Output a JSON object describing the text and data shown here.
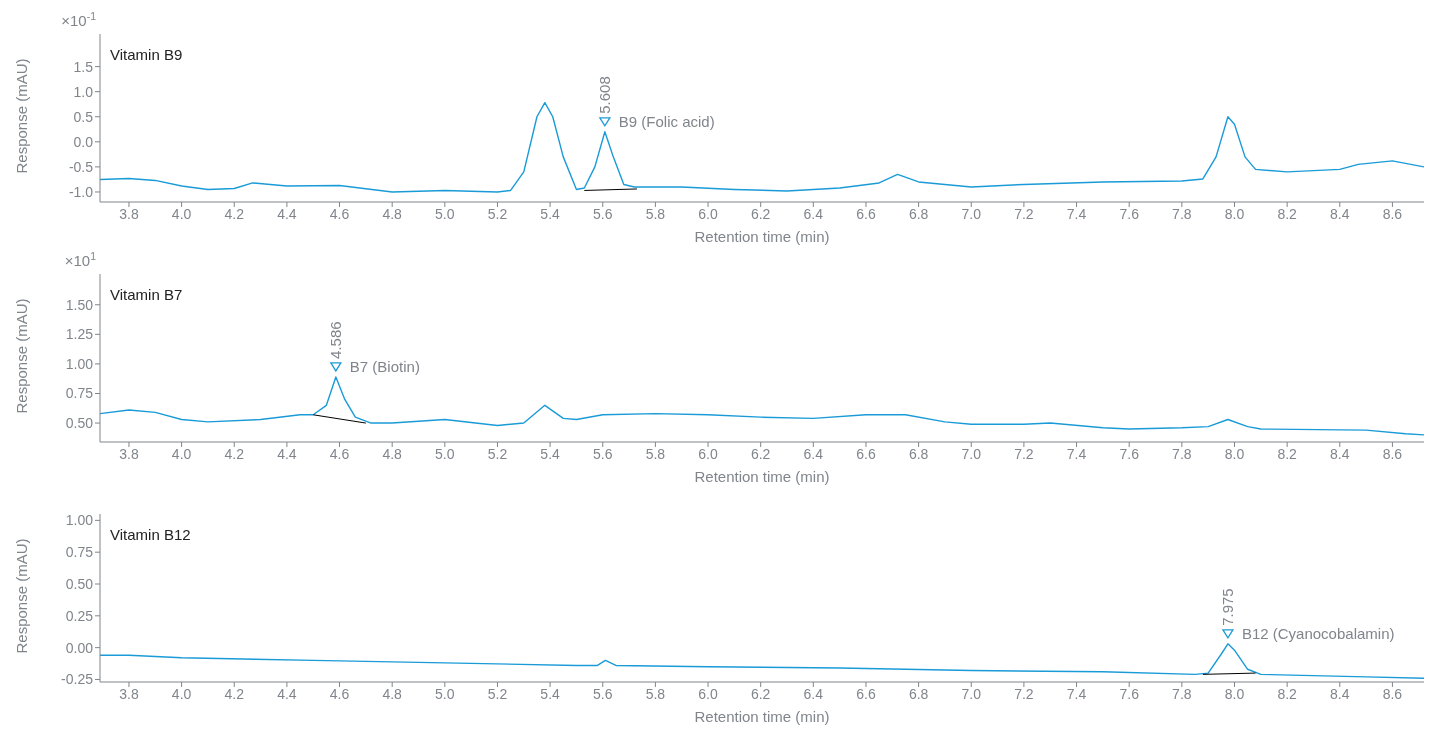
{
  "chart_data": [
    {
      "type": "line",
      "title": "Vitamin B9",
      "xlabel": "Retention time (min)",
      "ylabel": "Response (mAU)",
      "xlim": [
        3.69,
        8.72
      ],
      "ylim": [
        -1.2,
        2.15
      ],
      "marker": "none",
      "xticks": [
        {
          "value": 3.8,
          "label": "3.8"
        },
        {
          "value": 4.0,
          "label": "4.0"
        },
        {
          "value": 4.2,
          "label": "4.2"
        },
        {
          "value": 4.4,
          "label": "4.4"
        },
        {
          "value": 4.6,
          "label": "4.6"
        },
        {
          "value": 4.8,
          "label": "4.8"
        },
        {
          "value": 5.0,
          "label": "5.0"
        },
        {
          "value": 5.2,
          "label": "5.2"
        },
        {
          "value": 5.4,
          "label": "5.4"
        },
        {
          "value": 5.6,
          "label": "5.6"
        },
        {
          "value": 5.8,
          "label": "5.8"
        },
        {
          "value": 6.0,
          "label": "6.0"
        },
        {
          "value": 6.2,
          "label": "6.2"
        },
        {
          "value": 6.4,
          "label": "6.4"
        },
        {
          "value": 6.6,
          "label": "6.6"
        },
        {
          "value": 6.8,
          "label": "6.8"
        },
        {
          "value": 7.0,
          "label": "7.0"
        },
        {
          "value": 7.2,
          "label": "7.2"
        },
        {
          "value": 7.4,
          "label": "7.4"
        },
        {
          "value": 7.6,
          "label": "7.6"
        },
        {
          "value": 7.8,
          "label": "7.8"
        },
        {
          "value": 8.0,
          "label": "8.0"
        },
        {
          "value": 8.2,
          "label": "8.2"
        },
        {
          "value": 8.4,
          "label": "8.4"
        },
        {
          "value": 8.6,
          "label": "8.6"
        }
      ],
      "yticks": [
        {
          "value": -1.0,
          "label": "-1.0"
        },
        -0.5,
        {
          "value": 0,
          "label": "0.0"
        },
        0.5,
        {
          "value": 1.0,
          "label": "1.0"
        },
        1.5
      ],
      "annotations": [
        "×10$^{-1}$",
        {
          "text": "5.608",
          "x": 5.608,
          "y": 0.2
        },
        {
          "text": "B9 (Folic acid)",
          "x": 5.608,
          "y": 0.2
        }
      ],
      "series": [
        {
          "color": "#1a9bd7",
          "x": [
            3.69,
            3.8,
            3.9,
            4.0,
            4.1,
            4.2,
            4.27,
            4.4,
            4.6,
            4.8,
            5.0,
            5.2,
            5.25,
            5.3,
            5.35,
            5.38,
            5.41,
            5.45,
            5.5,
            5.53,
            5.57,
            5.608,
            5.64,
            5.68,
            5.72,
            5.9,
            6.1,
            6.3,
            6.5,
            6.65,
            6.72,
            6.8,
            7.0,
            7.2,
            7.5,
            7.8,
            7.88,
            7.93,
            7.975,
            8.0,
            8.04,
            8.08,
            8.2,
            8.4,
            8.47,
            8.6,
            8.72
          ],
          "values": [
            -0.75,
            -0.73,
            -0.77,
            -0.88,
            -0.95,
            -0.93,
            -0.82,
            -0.88,
            -0.87,
            -1.0,
            -0.97,
            -1.0,
            -0.97,
            -0.6,
            0.5,
            0.78,
            0.5,
            -0.3,
            -0.95,
            -0.92,
            -0.5,
            0.2,
            -0.3,
            -0.85,
            -0.9,
            -0.9,
            -0.95,
            -0.98,
            -0.92,
            -0.82,
            -0.65,
            -0.8,
            -0.9,
            -0.85,
            -0.8,
            -0.78,
            -0.74,
            -0.3,
            0.5,
            0.35,
            -0.3,
            -0.55,
            -0.6,
            -0.55,
            -0.45,
            -0.38,
            -0.5
          ]
        },
        {
          "type": "line",
          "color": "#000000",
          "x": [
            5.53,
            5.73
          ],
          "values": [
            -0.97,
            -0.94
          ]
        }
      ]
    },
    {
      "type": "line",
      "title": "Vitamin B7",
      "xlabel": "Retention time (min)",
      "ylabel": "Response (mAU)",
      "xlim": [
        3.69,
        8.72
      ],
      "ylim": [
        0.34,
        1.76
      ],
      "marker": "none",
      "xticks": [
        {
          "value": 3.8,
          "label": "3.8"
        },
        {
          "value": 4.0,
          "label": "4.0"
        },
        {
          "value": 4.2,
          "label": "4.2"
        },
        {
          "value": 4.4,
          "label": "4.4"
        },
        {
          "value": 4.6,
          "label": "4.6"
        },
        {
          "value": 4.8,
          "label": "4.8"
        },
        {
          "value": 5.0,
          "label": "5.0"
        },
        {
          "value": 5.2,
          "label": "5.2"
        },
        {
          "value": 5.4,
          "label": "5.4"
        },
        {
          "value": 5.6,
          "label": "5.6"
        },
        {
          "value": 5.8,
          "label": "5.8"
        },
        {
          "value": 6.0,
          "label": "6.0"
        },
        {
          "value": 6.2,
          "label": "6.2"
        },
        {
          "value": 6.4,
          "label": "6.4"
        },
        {
          "value": 6.6,
          "label": "6.6"
        },
        {
          "value": 6.8,
          "label": "6.8"
        },
        {
          "value": 7.0,
          "label": "7.0"
        },
        {
          "value": 7.2,
          "label": "7.2"
        },
        {
          "value": 7.4,
          "label": "7.4"
        },
        {
          "value": 7.6,
          "label": "7.6"
        },
        {
          "value": 7.8,
          "label": "7.8"
        },
        {
          "value": 8.0,
          "label": "8.0"
        },
        {
          "value": 8.2,
          "label": "8.2"
        },
        {
          "value": 8.4,
          "label": "8.4"
        },
        {
          "value": 8.6,
          "label": "8.6"
        }
      ],
      "yticks": [
        {
          "value": 0.5,
          "label": "0.50"
        },
        0.75,
        {
          "value": 1.0,
          "label": "1.00"
        },
        1.25,
        {
          "value": 1.5,
          "label": "1.50"
        }
      ],
      "annotations": [
        "×10$^{1}$",
        {
          "text": "4.586",
          "x": 4.586,
          "y": 0.89
        },
        {
          "text": "B7 (Biotin)",
          "x": 4.586,
          "y": 0.89
        }
      ],
      "series": [
        {
          "color": "#1a9bd7",
          "x": [
            3.69,
            3.8,
            3.9,
            4.0,
            4.1,
            4.3,
            4.45,
            4.5,
            4.55,
            4.586,
            4.62,
            4.66,
            4.72,
            4.8,
            5.0,
            5.2,
            5.3,
            5.38,
            5.45,
            5.5,
            5.6,
            5.8,
            6.0,
            6.2,
            6.4,
            6.6,
            6.75,
            6.9,
            7.0,
            7.2,
            7.3,
            7.5,
            7.6,
            7.8,
            7.9,
            7.975,
            8.05,
            8.1,
            8.5,
            8.65,
            8.72
          ],
          "values": [
            0.58,
            0.61,
            0.59,
            0.53,
            0.51,
            0.53,
            0.57,
            0.57,
            0.65,
            0.89,
            0.7,
            0.55,
            0.5,
            0.5,
            0.53,
            0.48,
            0.5,
            0.65,
            0.54,
            0.53,
            0.57,
            0.58,
            0.57,
            0.55,
            0.54,
            0.57,
            0.57,
            0.51,
            0.49,
            0.49,
            0.5,
            0.46,
            0.45,
            0.46,
            0.47,
            0.53,
            0.47,
            0.45,
            0.44,
            0.41,
            0.4
          ]
        },
        {
          "type": "line",
          "color": "#000000",
          "x": [
            4.5,
            4.7
          ],
          "values": [
            0.57,
            0.5
          ]
        }
      ]
    },
    {
      "type": "line",
      "title": "Vitamin B12",
      "xlabel": "Retention time (min)",
      "ylabel": "Response (mAU)",
      "xlim": [
        3.69,
        8.72
      ],
      "ylim": [
        -0.27,
        1.05
      ],
      "marker": "none",
      "xticks": [
        {
          "value": 3.8,
          "label": "3.8"
        },
        {
          "value": 4.0,
          "label": "4.0"
        },
        {
          "value": 4.2,
          "label": "4.2"
        },
        {
          "value": 4.4,
          "label": "4.4"
        },
        {
          "value": 4.6,
          "label": "4.6"
        },
        {
          "value": 4.8,
          "label": "4.8"
        },
        {
          "value": 5.0,
          "label": "5.0"
        },
        {
          "value": 5.2,
          "label": "5.2"
        },
        {
          "value": 5.4,
          "label": "5.4"
        },
        {
          "value": 5.6,
          "label": "5.6"
        },
        {
          "value": 5.8,
          "label": "5.8"
        },
        {
          "value": 6.0,
          "label": "6.0"
        },
        {
          "value": 6.2,
          "label": "6.2"
        },
        {
          "value": 6.4,
          "label": "6.4"
        },
        {
          "value": 6.6,
          "label": "6.6"
        },
        {
          "value": 6.8,
          "label": "6.8"
        },
        {
          "value": 7.0,
          "label": "7.0"
        },
        {
          "value": 7.2,
          "label": "7.2"
        },
        {
          "value": 7.4,
          "label": "7.4"
        },
        {
          "value": 7.6,
          "label": "7.6"
        },
        {
          "value": 7.8,
          "label": "7.8"
        },
        {
          "value": 8.0,
          "label": "8.0"
        },
        {
          "value": 8.2,
          "label": "8.2"
        },
        {
          "value": 8.4,
          "label": "8.4"
        },
        {
          "value": 8.6,
          "label": "8.6"
        }
      ],
      "yticks": [
        -0.25,
        {
          "value": 0,
          "label": "0.00"
        },
        0.25,
        {
          "value": 0.5,
          "label": "0.50"
        },
        0.75,
        {
          "value": 1.0,
          "label": "1.00"
        }
      ],
      "annotations": [
        {
          "text": "7.975",
          "x": 7.975,
          "y": 0.03
        },
        {
          "text": "B12 (Cyanocobalamin)",
          "x": 7.975,
          "y": 0.03
        }
      ],
      "series": [
        {
          "color": "#1a9bd7",
          "x": [
            3.69,
            3.8,
            4.0,
            4.5,
            5.0,
            5.5,
            5.58,
            5.61,
            5.65,
            6.0,
            6.5,
            7.0,
            7.5,
            7.85,
            7.9,
            7.95,
            7.975,
            8.0,
            8.05,
            8.1,
            8.5,
            8.72
          ],
          "values": [
            -0.06,
            -0.06,
            -0.08,
            -0.1,
            -0.12,
            -0.14,
            -0.14,
            -0.1,
            -0.14,
            -0.15,
            -0.16,
            -0.18,
            -0.19,
            -0.21,
            -0.2,
            -0.05,
            0.03,
            -0.02,
            -0.17,
            -0.21,
            -0.23,
            -0.24
          ]
        },
        {
          "type": "line",
          "color": "#000000",
          "x": [
            7.88,
            8.08
          ],
          "values": [
            -0.21,
            -0.2
          ]
        }
      ]
    }
  ]
}
